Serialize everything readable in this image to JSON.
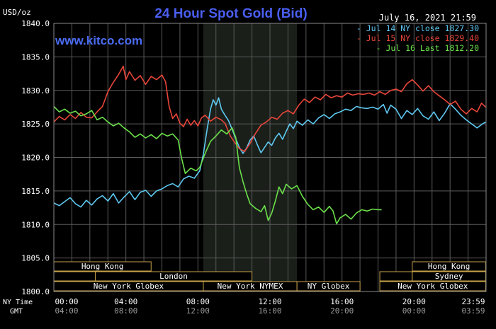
{
  "chart_data": {
    "type": "line",
    "title": "24 Hour Spot Gold (Bid)",
    "units_label": "USD/oz",
    "date_label": "July 16, 2021 21:59",
    "watermark": "www.kitco.com",
    "ylim": [
      1800,
      1840
    ],
    "y_ticks": [
      "1840.0",
      "1835.0",
      "1830.0",
      "1825.0",
      "1820.0",
      "1815.0",
      "1810.0",
      "1805.0",
      "1800.0"
    ],
    "y_tick_values": [
      1840,
      1835,
      1830,
      1825,
      1820,
      1815,
      1810,
      1805,
      1800
    ],
    "x_hours": [
      0,
      24
    ],
    "x_ticks_ny": [
      "00:00",
      "04:00",
      "08:00",
      "12:00",
      "16:00",
      "20:00",
      "23:59"
    ],
    "x_ticks_gmt": [
      "04:00",
      "08:00",
      "12:00",
      "16:00",
      "20:00",
      "00:00",
      "03:59"
    ],
    "x_tick_hours": [
      0,
      4,
      8,
      12,
      16,
      20,
      23.98
    ],
    "axis_label_ny": "NY Time",
    "axis_label_gmt": "GMT",
    "shaded_hours": [
      8.3,
      13.5
    ],
    "grid": true,
    "legend_placement": "top-right",
    "series": [
      {
        "name": "Jul 14 NY close 1827.30",
        "color": "#5ec8f0",
        "points": [
          [
            0,
            1813.2
          ],
          [
            0.3,
            1812.8
          ],
          [
            0.6,
            1813.4
          ],
          [
            0.9,
            1814.0
          ],
          [
            1.2,
            1813.1
          ],
          [
            1.5,
            1812.6
          ],
          [
            1.8,
            1813.6
          ],
          [
            2.1,
            1812.9
          ],
          [
            2.4,
            1813.8
          ],
          [
            2.7,
            1814.3
          ],
          [
            3.0,
            1813.5
          ],
          [
            3.3,
            1814.6
          ],
          [
            3.6,
            1813.2
          ],
          [
            3.9,
            1814.1
          ],
          [
            4.2,
            1814.9
          ],
          [
            4.5,
            1813.7
          ],
          [
            4.8,
            1814.8
          ],
          [
            5.1,
            1815.1
          ],
          [
            5.4,
            1814.2
          ],
          [
            5.7,
            1815.0
          ],
          [
            6.0,
            1815.3
          ],
          [
            6.3,
            1815.8
          ],
          [
            6.6,
            1816.1
          ],
          [
            6.9,
            1815.6
          ],
          [
            7.2,
            1816.8
          ],
          [
            7.5,
            1817.2
          ],
          [
            7.8,
            1816.9
          ],
          [
            8.1,
            1818.0
          ],
          [
            8.3,
            1820.5
          ],
          [
            8.5,
            1824.0
          ],
          [
            8.7,
            1827.2
          ],
          [
            8.85,
            1828.6
          ],
          [
            9.0,
            1827.8
          ],
          [
            9.15,
            1828.9
          ],
          [
            9.3,
            1827.2
          ],
          [
            9.5,
            1826.3
          ],
          [
            9.7,
            1825.5
          ],
          [
            9.9,
            1824.2
          ],
          [
            10.1,
            1822.8
          ],
          [
            10.3,
            1821.5
          ],
          [
            10.5,
            1820.6
          ],
          [
            10.7,
            1821.4
          ],
          [
            10.9,
            1822.6
          ],
          [
            11.1,
            1823.2
          ],
          [
            11.3,
            1821.9
          ],
          [
            11.5,
            1820.7
          ],
          [
            11.7,
            1821.5
          ],
          [
            11.9,
            1822.3
          ],
          [
            12.1,
            1821.8
          ],
          [
            12.3,
            1822.9
          ],
          [
            12.5,
            1823.6
          ],
          [
            12.7,
            1822.7
          ],
          [
            12.9,
            1823.9
          ],
          [
            13.1,
            1825.0
          ],
          [
            13.3,
            1824.3
          ],
          [
            13.5,
            1825.4
          ],
          [
            13.8,
            1824.8
          ],
          [
            14.1,
            1825.6
          ],
          [
            14.4,
            1825.0
          ],
          [
            14.7,
            1825.9
          ],
          [
            15.0,
            1826.4
          ],
          [
            15.3,
            1825.8
          ],
          [
            15.6,
            1826.5
          ],
          [
            15.9,
            1826.8
          ],
          [
            16.2,
            1827.2
          ],
          [
            16.5,
            1827.0
          ],
          [
            16.8,
            1827.6
          ],
          [
            17.1,
            1827.4
          ],
          [
            17.4,
            1827.3
          ],
          [
            17.7,
            1827.5
          ],
          [
            18.0,
            1827.2
          ],
          [
            18.3,
            1827.9
          ],
          [
            18.5,
            1826.6
          ],
          [
            18.7,
            1827.8
          ],
          [
            19.0,
            1827.2
          ],
          [
            19.3,
            1825.8
          ],
          [
            19.6,
            1827.0
          ],
          [
            19.9,
            1826.4
          ],
          [
            20.2,
            1827.3
          ],
          [
            20.5,
            1826.2
          ],
          [
            20.8,
            1825.7
          ],
          [
            21.1,
            1826.8
          ],
          [
            21.4,
            1825.5
          ],
          [
            21.7,
            1826.6
          ],
          [
            22.0,
            1828.0
          ],
          [
            22.3,
            1827.2
          ],
          [
            22.6,
            1826.3
          ],
          [
            22.9,
            1825.6
          ],
          [
            23.2,
            1825.0
          ],
          [
            23.5,
            1824.4
          ],
          [
            23.75,
            1824.9
          ],
          [
            23.98,
            1825.3
          ]
        ]
      },
      {
        "name": "Jul 15 NY close 1829.40",
        "color": "#e8463a",
        "points": [
          [
            0,
            1825.3
          ],
          [
            0.3,
            1826.1
          ],
          [
            0.6,
            1825.6
          ],
          [
            0.9,
            1826.4
          ],
          [
            1.2,
            1825.8
          ],
          [
            1.5,
            1826.7
          ],
          [
            1.8,
            1826.0
          ],
          [
            2.1,
            1825.9
          ],
          [
            2.4,
            1826.8
          ],
          [
            2.7,
            1827.6
          ],
          [
            3.0,
            1829.8
          ],
          [
            3.3,
            1831.2
          ],
          [
            3.6,
            1832.4
          ],
          [
            3.85,
            1833.6
          ],
          [
            4.0,
            1831.6
          ],
          [
            4.2,
            1832.8
          ],
          [
            4.5,
            1831.5
          ],
          [
            4.8,
            1832.2
          ],
          [
            5.1,
            1830.9
          ],
          [
            5.4,
            1832.1
          ],
          [
            5.7,
            1831.6
          ],
          [
            6.0,
            1832.3
          ],
          [
            6.2,
            1831.3
          ],
          [
            6.4,
            1827.6
          ],
          [
            6.6,
            1825.8
          ],
          [
            6.8,
            1826.5
          ],
          [
            7.0,
            1825.1
          ],
          [
            7.2,
            1824.6
          ],
          [
            7.4,
            1825.7
          ],
          [
            7.6,
            1824.8
          ],
          [
            7.8,
            1825.5
          ],
          [
            8.0,
            1824.7
          ],
          [
            8.2,
            1825.9
          ],
          [
            8.4,
            1826.3
          ],
          [
            8.7,
            1825.4
          ],
          [
            9.0,
            1826.0
          ],
          [
            9.3,
            1825.6
          ],
          [
            9.5,
            1825.1
          ],
          [
            9.8,
            1823.2
          ],
          [
            10.0,
            1822.4
          ],
          [
            10.3,
            1821.3
          ],
          [
            10.6,
            1820.9
          ],
          [
            10.9,
            1822.1
          ],
          [
            11.2,
            1823.6
          ],
          [
            11.5,
            1824.8
          ],
          [
            11.8,
            1825.3
          ],
          [
            12.1,
            1826.0
          ],
          [
            12.4,
            1825.7
          ],
          [
            12.7,
            1826.6
          ],
          [
            13.0,
            1827.0
          ],
          [
            13.3,
            1826.5
          ],
          [
            13.6,
            1827.8
          ],
          [
            13.9,
            1828.7
          ],
          [
            14.2,
            1828.2
          ],
          [
            14.5,
            1829.0
          ],
          [
            14.8,
            1828.6
          ],
          [
            15.1,
            1829.4
          ],
          [
            15.4,
            1828.9
          ],
          [
            15.7,
            1829.2
          ],
          [
            16.0,
            1829.0
          ],
          [
            16.3,
            1829.6
          ],
          [
            16.6,
            1829.3
          ],
          [
            16.9,
            1829.5
          ],
          [
            17.2,
            1829.4
          ],
          [
            17.5,
            1829.6
          ],
          [
            17.8,
            1829.3
          ],
          [
            18.1,
            1829.8
          ],
          [
            18.4,
            1829.4
          ],
          [
            18.7,
            1830.0
          ],
          [
            19.0,
            1830.2
          ],
          [
            19.3,
            1829.8
          ],
          [
            19.6,
            1831.0
          ],
          [
            19.9,
            1831.6
          ],
          [
            20.2,
            1830.8
          ],
          [
            20.5,
            1829.9
          ],
          [
            20.8,
            1830.7
          ],
          [
            21.1,
            1829.8
          ],
          [
            21.4,
            1829.2
          ],
          [
            21.7,
            1828.6
          ],
          [
            22.0,
            1827.9
          ],
          [
            22.3,
            1828.4
          ],
          [
            22.6,
            1827.2
          ],
          [
            22.9,
            1826.5
          ],
          [
            23.2,
            1827.3
          ],
          [
            23.5,
            1826.8
          ],
          [
            23.75,
            1828.1
          ],
          [
            23.98,
            1827.5
          ]
        ]
      },
      {
        "name": "Jul 16 Last 1812.20",
        "color": "#6be04a",
        "points": [
          [
            0,
            1827.6
          ],
          [
            0.3,
            1826.8
          ],
          [
            0.6,
            1827.2
          ],
          [
            0.9,
            1826.6
          ],
          [
            1.2,
            1826.9
          ],
          [
            1.5,
            1826.2
          ],
          [
            1.8,
            1826.5
          ],
          [
            2.1,
            1827.0
          ],
          [
            2.4,
            1825.6
          ],
          [
            2.7,
            1826.0
          ],
          [
            3.0,
            1825.3
          ],
          [
            3.3,
            1824.7
          ],
          [
            3.6,
            1825.1
          ],
          [
            3.9,
            1824.4
          ],
          [
            4.2,
            1823.8
          ],
          [
            4.5,
            1823.0
          ],
          [
            4.8,
            1823.5
          ],
          [
            5.1,
            1822.9
          ],
          [
            5.4,
            1823.4
          ],
          [
            5.7,
            1822.8
          ],
          [
            6.0,
            1823.6
          ],
          [
            6.3,
            1823.2
          ],
          [
            6.6,
            1823.5
          ],
          [
            6.9,
            1822.6
          ],
          [
            7.1,
            1819.8
          ],
          [
            7.3,
            1817.6
          ],
          [
            7.6,
            1818.4
          ],
          [
            7.9,
            1818.0
          ],
          [
            8.1,
            1818.5
          ],
          [
            8.4,
            1820.6
          ],
          [
            8.7,
            1822.4
          ],
          [
            9.0,
            1823.2
          ],
          [
            9.3,
            1824.1
          ],
          [
            9.6,
            1823.5
          ],
          [
            9.9,
            1824.4
          ],
          [
            10.1,
            1823.0
          ],
          [
            10.3,
            1818.5
          ],
          [
            10.5,
            1816.4
          ],
          [
            10.7,
            1814.6
          ],
          [
            10.9,
            1813.1
          ],
          [
            11.2,
            1812.4
          ],
          [
            11.5,
            1811.9
          ],
          [
            11.7,
            1812.8
          ],
          [
            11.9,
            1810.6
          ],
          [
            12.1,
            1811.7
          ],
          [
            12.3,
            1813.5
          ],
          [
            12.5,
            1815.6
          ],
          [
            12.7,
            1814.6
          ],
          [
            12.9,
            1816.0
          ],
          [
            13.2,
            1815.3
          ],
          [
            13.5,
            1815.8
          ],
          [
            13.8,
            1814.2
          ],
          [
            14.1,
            1813.0
          ],
          [
            14.4,
            1812.2
          ],
          [
            14.7,
            1812.6
          ],
          [
            15.0,
            1811.8
          ],
          [
            15.3,
            1812.7
          ],
          [
            15.5,
            1812.0
          ],
          [
            15.7,
            1810.1
          ],
          [
            15.9,
            1811.0
          ],
          [
            16.2,
            1811.5
          ],
          [
            16.5,
            1810.8
          ],
          [
            16.8,
            1811.7
          ],
          [
            17.1,
            1812.2
          ],
          [
            17.4,
            1812.0
          ],
          [
            17.7,
            1812.3
          ],
          [
            18.0,
            1812.2
          ],
          [
            18.2,
            1812.2
          ]
        ]
      }
    ],
    "sessions": [
      {
        "label": "Hong Kong",
        "row": 0,
        "start": 0,
        "end": 5.4,
        "show_label": true
      },
      {
        "label": "",
        "row": 1,
        "start": 0,
        "end": 2.3,
        "show_label": false
      },
      {
        "label": "London",
        "row": 1,
        "start": 2.3,
        "end": 11.0,
        "show_label": true
      },
      {
        "label": "New York Globex",
        "row": 2,
        "start": 0,
        "end": 8.3,
        "show_label": true
      },
      {
        "label": "New York NYMEX",
        "row": 2,
        "start": 8.3,
        "end": 13.5,
        "show_label": true
      },
      {
        "label": "NY Globex",
        "row": 2,
        "start": 13.5,
        "end": 17.0,
        "show_label": true
      },
      {
        "label": "",
        "row": 1,
        "start": 18.1,
        "end": 19.9,
        "show_label": false
      },
      {
        "label": "Hong Kong",
        "row": 0,
        "start": 19.9,
        "end": 23.98,
        "show_label": true
      },
      {
        "label": "Sydney",
        "row": 1,
        "start": 19.9,
        "end": 23.98,
        "show_label": true
      },
      {
        "label": "New York Globex",
        "row": 2,
        "start": 18.1,
        "end": 23.98,
        "show_label": true
      }
    ]
  }
}
